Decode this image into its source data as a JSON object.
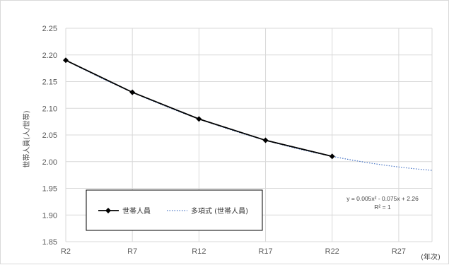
{
  "chart_data": {
    "type": "line",
    "title": "",
    "xlabel": "(年次)",
    "ylabel": "世帯人員(人/世帯)",
    "categories": [
      "R2",
      "R7",
      "R12",
      "R17",
      "R22",
      "R27"
    ],
    "ylim": [
      1.85,
      2.25
    ],
    "yticks": [
      "2.25",
      "2.20",
      "2.15",
      "2.10",
      "2.05",
      "2.00",
      "1.95",
      "1.90",
      "1.85"
    ],
    "grid": true,
    "legend_position": "bottom-left",
    "series": [
      {
        "name": "世帯人員",
        "style": "solid-diamond",
        "color": "#000000",
        "x": [
          0,
          1,
          2,
          3,
          4
        ],
        "values": [
          2.19,
          2.13,
          2.08,
          2.04,
          2.01
        ]
      },
      {
        "name": "多項式 (世帯人員)",
        "style": "dotted-trendline",
        "color": "#4472c4",
        "x_range": [
          4,
          6
        ],
        "values_at_ends": [
          2.01,
          1.98
        ]
      }
    ],
    "trendline_equation": "y = 0.005x² - 0.075x + 2.26",
    "r_squared": "R² = 1"
  }
}
